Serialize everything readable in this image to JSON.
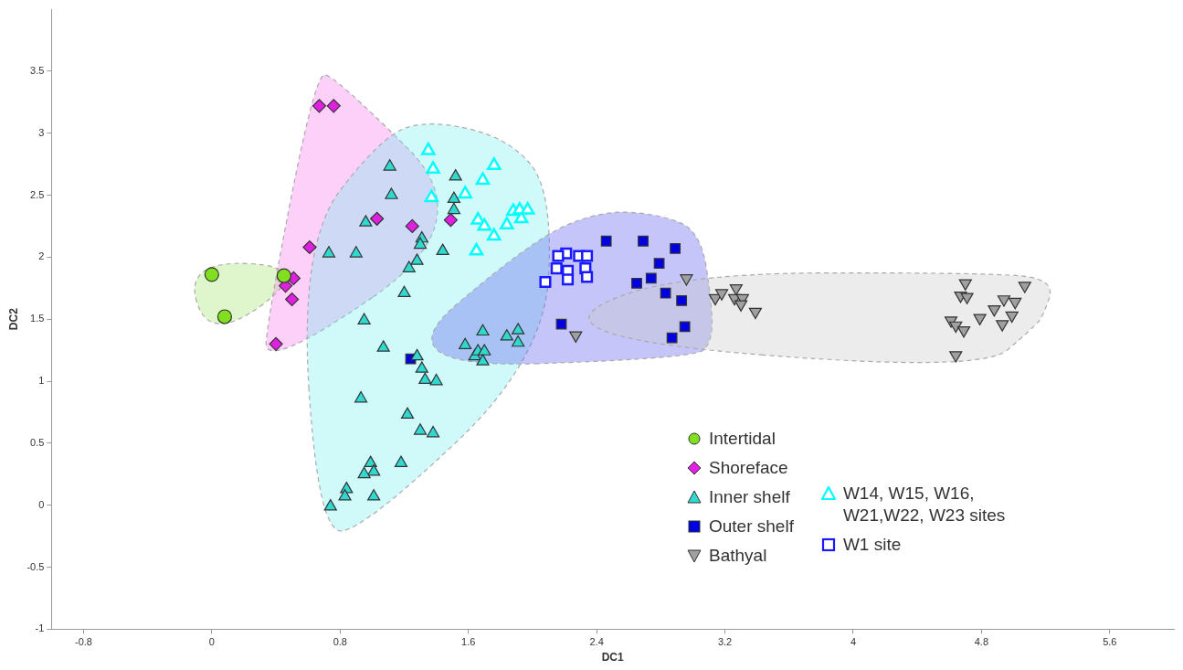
{
  "chart_data": {
    "type": "scatter",
    "xlabel": "DC1",
    "ylabel": "DC2",
    "xlim": [
      -1,
      6
    ],
    "ylim": [
      -1,
      4
    ],
    "xticks": [
      -0.8,
      0,
      0.8,
      1.6,
      2.4,
      3.2,
      4,
      4.8,
      5.6
    ],
    "yticks": [
      -1,
      -0.5,
      0,
      0.5,
      1,
      1.5,
      2,
      2.5,
      3,
      3.5
    ],
    "grid": false,
    "legend": "bottom right",
    "series": [
      {
        "name": "Intertidal",
        "color": "#80e020",
        "marker": "circle",
        "x": [
          0,
          0.08,
          0.45
        ],
        "values": [
          1.86,
          1.52,
          1.85
        ]
      },
      {
        "name": "Shoreface",
        "color": "#e020e0",
        "marker": "diamond",
        "x": [
          0.67,
          0.76,
          0.61,
          1.03,
          1.25,
          1.49,
          0.51,
          0.46,
          0.5,
          0.4
        ],
        "values": [
          3.22,
          3.22,
          2.08,
          2.31,
          2.25,
          2.3,
          1.83,
          1.77,
          1.66,
          1.3
        ]
      },
      {
        "name": "Inner shelf",
        "color": "#30d8d0",
        "marker": "triangle",
        "x": [
          1.11,
          1.12,
          0.96,
          0.73,
          0.9,
          1.31,
          1.3,
          1.28,
          1.23,
          1.2,
          1.44,
          1.52,
          1.51,
          1.51,
          0.95,
          1.07,
          1.28,
          1.31,
          1.33,
          1.4,
          1.58,
          1.69,
          1.64,
          1.66,
          1.7,
          1.69,
          1.84,
          1.91,
          1.91,
          0.93,
          1.22,
          1.3,
          1.38,
          1.18,
          0.99,
          1.01,
          0.95,
          0.84,
          0.83,
          1.01,
          0.74
        ],
        "values": [
          2.73,
          2.5,
          2.28,
          2.03,
          2.03,
          2.15,
          2.1,
          1.97,
          1.91,
          1.71,
          2.05,
          2.65,
          2.47,
          2.38,
          1.49,
          1.27,
          1.2,
          1.1,
          1.01,
          1,
          1.29,
          1.4,
          1.2,
          1.24,
          1.24,
          1.16,
          1.36,
          1.41,
          1.31,
          0.86,
          0.73,
          0.6,
          0.58,
          0.34,
          0.34,
          0.27,
          0.25,
          0.13,
          0.07,
          0.07,
          -0.01
        ]
      },
      {
        "name": "Outer shelf",
        "color": "#0000e0",
        "marker": "square",
        "x": [
          2.46,
          2.69,
          2.89,
          2.79,
          2.74,
          2.65,
          2.83,
          2.93,
          2.18,
          2.95,
          2.87,
          1.24
        ],
        "values": [
          2.13,
          2.13,
          2.07,
          1.95,
          1.83,
          1.79,
          1.71,
          1.65,
          1.46,
          1.44,
          1.35,
          1.18
        ]
      },
      {
        "name": "Bathyal",
        "color": "#a0a0a0",
        "marker": "triangle-down",
        "x": [
          2.96,
          2.27,
          3.14,
          3.18,
          3.27,
          3.26,
          3.31,
          3.3,
          3.39,
          4.7,
          4.67,
          4.71,
          4.61,
          4.64,
          4.69,
          4.64,
          4.79,
          4.88,
          4.94,
          5.01,
          4.99,
          4.93,
          5.07
        ],
        "values": [
          1.83,
          1.37,
          1.67,
          1.71,
          1.75,
          1.67,
          1.67,
          1.62,
          1.56,
          1.79,
          1.69,
          1.68,
          1.49,
          1.45,
          1.41,
          1.21,
          1.51,
          1.58,
          1.66,
          1.64,
          1.53,
          1.46,
          1.77
        ]
      },
      {
        "name": "W14, W15, W16, W21,W22, W23 sites",
        "color": "#00ffff",
        "marker": "triangle-open",
        "x": [
          1.35,
          1.38,
          1.37,
          1.58,
          1.69,
          1.76,
          1.66,
          1.7,
          1.76,
          1.84,
          1.88,
          1.93,
          1.92,
          1.97,
          1.65
        ],
        "values": [
          2.86,
          2.71,
          2.48,
          2.51,
          2.62,
          2.74,
          2.3,
          2.25,
          2.17,
          2.26,
          2.37,
          2.31,
          2.38,
          2.38,
          2.05
        ]
      },
      {
        "name": "W1 site",
        "color": "#1a1aff",
        "marker": "square-open",
        "x": [
          2.08,
          2.15,
          2.21,
          2.29,
          2.34,
          2.22,
          2.33,
          2.34,
          2.22,
          2.16
        ],
        "values": [
          1.8,
          1.91,
          2.03,
          2.01,
          2.01,
          1.89,
          1.91,
          1.84,
          1.82,
          2.01
        ]
      }
    ]
  }
}
